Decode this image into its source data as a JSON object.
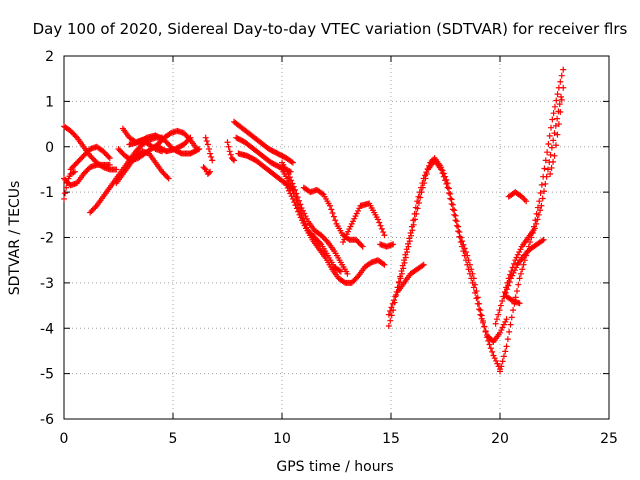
{
  "chart_data": {
    "type": "scatter",
    "title": "Day 100 of 2020, Sidereal Day-to-day VTEC variation (SDTVAR) for receiver flrs",
    "xlabel": "GPS time / hours",
    "ylabel": "SDTVAR / TECUs",
    "xlim": [
      0,
      25
    ],
    "ylim": [
      -6,
      2
    ],
    "x_ticks": [
      0,
      5,
      10,
      15,
      20,
      25
    ],
    "y_ticks": [
      -6,
      -5,
      -4,
      -3,
      -2,
      -1,
      0,
      1,
      2
    ],
    "grid": true,
    "legend": "none",
    "marker": "+",
    "series_color": "#ff0000",
    "series": [
      {
        "name": "s1",
        "x": [
          0.0,
          0.3,
          0.6,
          0.9,
          1.2,
          1.5,
          1.8,
          2.1,
          2.4
        ],
        "y": [
          0.45,
          0.35,
          0.2,
          0.0,
          -0.2,
          -0.35,
          -0.45,
          -0.5,
          -0.5
        ]
      },
      {
        "name": "s2",
        "x": [
          0.0,
          0.3,
          0.6,
          0.9,
          1.2,
          1.5,
          1.8,
          2.1
        ],
        "y": [
          -0.7,
          -0.85,
          -0.8,
          -0.6,
          -0.45,
          -0.4,
          -0.4,
          -0.4
        ]
      },
      {
        "name": "s3",
        "x": [
          0.0,
          0.1,
          0.2,
          0.3,
          0.5
        ],
        "y": [
          -1.15,
          -0.9,
          -0.7,
          -0.6,
          -0.55
        ]
      },
      {
        "name": "s4",
        "x": [
          0.3,
          0.6,
          0.9,
          1.2,
          1.5,
          1.8,
          2.1
        ],
        "y": [
          -0.5,
          -0.35,
          -0.2,
          -0.05,
          0.0,
          -0.1,
          -0.25
        ]
      },
      {
        "name": "s5",
        "x": [
          1.2,
          1.5,
          1.8,
          2.1,
          2.4,
          2.7,
          3.0,
          3.3,
          3.6,
          3.9,
          4.2,
          4.5
        ],
        "y": [
          -1.45,
          -1.3,
          -1.1,
          -0.9,
          -0.7,
          -0.5,
          -0.3,
          -0.1,
          0.05,
          0.15,
          0.2,
          0.2
        ]
      },
      {
        "name": "s6",
        "x": [
          2.4,
          2.7,
          3.0,
          3.3,
          3.6,
          3.9,
          4.2,
          4.5,
          4.8
        ],
        "y": [
          -0.8,
          -0.6,
          -0.4,
          -0.2,
          -0.1,
          -0.15,
          -0.35,
          -0.55,
          -0.7
        ]
      },
      {
        "name": "s7",
        "x": [
          2.7,
          3.0,
          3.3,
          3.6,
          3.9,
          4.2,
          4.5
        ],
        "y": [
          0.4,
          0.2,
          0.1,
          0.15,
          0.05,
          -0.05,
          -0.1
        ]
      },
      {
        "name": "s8",
        "x": [
          2.5,
          2.8,
          3.1,
          3.4,
          3.7,
          4.0,
          4.3,
          4.6,
          4.9,
          5.2,
          5.5,
          5.8,
          6.1
        ],
        "y": [
          -0.05,
          -0.2,
          -0.3,
          -0.25,
          -0.15,
          -0.05,
          0.05,
          0.2,
          0.3,
          0.35,
          0.3,
          0.15,
          -0.05
        ]
      },
      {
        "name": "s9",
        "x": [
          3.0,
          3.4,
          3.8,
          4.2,
          4.6,
          5.0,
          5.4,
          5.8,
          6.2
        ],
        "y": [
          0.05,
          0.1,
          0.2,
          0.25,
          0.15,
          -0.05,
          -0.15,
          -0.15,
          -0.05
        ]
      },
      {
        "name": "s10",
        "x": [
          4.3,
          4.7,
          5.1,
          5.5,
          5.8
        ],
        "y": [
          0.0,
          -0.1,
          -0.05,
          0.05,
          0.2
        ]
      },
      {
        "name": "s11",
        "x": [
          6.5,
          6.6,
          6.7,
          6.8
        ],
        "y": [
          0.2,
          0.05,
          -0.15,
          -0.3
        ]
      },
      {
        "name": "s12",
        "x": [
          6.4,
          6.5,
          6.6,
          6.7
        ],
        "y": [
          -0.45,
          -0.5,
          -0.6,
          -0.55
        ]
      },
      {
        "name": "s13",
        "x": [
          7.5,
          7.6,
          7.7,
          7.8
        ],
        "y": [
          0.1,
          -0.1,
          -0.25,
          -0.3
        ]
      },
      {
        "name": "s14",
        "x": [
          7.8,
          8.2,
          8.6,
          9.0,
          9.4,
          9.8,
          10.2,
          10.5
        ],
        "y": [
          0.55,
          0.4,
          0.25,
          0.1,
          -0.05,
          -0.15,
          -0.25,
          -0.35
        ]
      },
      {
        "name": "s15",
        "x": [
          7.9,
          8.3,
          8.7,
          9.1,
          9.5,
          9.9,
          10.2,
          10.4
        ],
        "y": [
          0.2,
          0.1,
          -0.05,
          -0.2,
          -0.35,
          -0.45,
          -0.5,
          -0.55
        ]
      },
      {
        "name": "s16",
        "x": [
          8.0,
          8.4,
          8.8,
          9.2,
          9.6,
          10.0,
          10.3,
          10.5
        ],
        "y": [
          -0.15,
          -0.2,
          -0.3,
          -0.45,
          -0.6,
          -0.75,
          -0.85,
          -0.95
        ]
      },
      {
        "name": "s17",
        "x": [
          10.0,
          10.3,
          10.6,
          10.9,
          11.2,
          11.5,
          11.8,
          12.1,
          12.4,
          12.7,
          13.0
        ],
        "y": [
          -0.35,
          -0.6,
          -0.95,
          -1.35,
          -1.65,
          -1.85,
          -1.95,
          -2.1,
          -2.3,
          -2.55,
          -2.8
        ]
      },
      {
        "name": "s18",
        "x": [
          10.0,
          10.3,
          10.6,
          10.9,
          11.2,
          11.5,
          11.8,
          12.1,
          12.4,
          12.7
        ],
        "y": [
          -0.5,
          -0.75,
          -1.1,
          -1.5,
          -1.85,
          -2.0,
          -2.15,
          -2.4,
          -2.65,
          -2.75
        ]
      },
      {
        "name": "s19",
        "x": [
          10.2,
          10.5,
          10.8,
          11.1,
          11.4,
          11.7,
          12.0,
          12.3,
          12.6,
          12.9,
          13.2,
          13.5,
          13.8,
          14.1,
          14.4,
          14.7
        ],
        "y": [
          -0.85,
          -1.15,
          -1.5,
          -1.8,
          -2.05,
          -2.25,
          -2.45,
          -2.7,
          -2.9,
          -3.0,
          -3.0,
          -2.85,
          -2.65,
          -2.55,
          -2.5,
          -2.6
        ]
      },
      {
        "name": "s20",
        "x": [
          11.0,
          11.3,
          11.6,
          11.9,
          12.2,
          12.5,
          12.8,
          13.1,
          13.4,
          13.7
        ],
        "y": [
          -0.9,
          -1.0,
          -0.95,
          -1.05,
          -1.3,
          -1.7,
          -1.95,
          -2.05,
          -2.05,
          -2.2
        ]
      },
      {
        "name": "s21",
        "x": [
          12.8,
          13.2,
          13.6,
          14.0,
          14.4,
          14.7
        ],
        "y": [
          -2.1,
          -1.7,
          -1.3,
          -1.25,
          -1.6,
          -1.95
        ]
      },
      {
        "name": "s22",
        "x": [
          14.5,
          14.8,
          15.1
        ],
        "y": [
          -2.15,
          -2.2,
          -2.15
        ]
      },
      {
        "name": "s23",
        "x": [
          14.9,
          15.1,
          15.3,
          15.6,
          15.9,
          16.2,
          16.5,
          16.8,
          17.0,
          17.3,
          17.6,
          17.9,
          18.2,
          18.5,
          18.8,
          19.1,
          19.4,
          19.7,
          20.0
        ],
        "y": [
          -3.95,
          -3.6,
          -3.1,
          -2.5,
          -1.9,
          -1.2,
          -0.7,
          -0.35,
          -0.25,
          -0.45,
          -0.8,
          -1.4,
          -2.0,
          -2.4,
          -2.9,
          -3.6,
          -4.2,
          -4.6,
          -4.9
        ]
      },
      {
        "name": "s24",
        "x": [
          14.9,
          15.2,
          15.5,
          15.8,
          16.1,
          16.4,
          16.7,
          17.0,
          17.3,
          17.6,
          17.9,
          18.2,
          18.5,
          18.8,
          19.1,
          19.4,
          19.7,
          20.0,
          20.3
        ],
        "y": [
          -3.7,
          -3.3,
          -2.8,
          -2.2,
          -1.6,
          -1.0,
          -0.5,
          -0.3,
          -0.5,
          -0.9,
          -1.5,
          -2.1,
          -2.6,
          -3.1,
          -3.7,
          -4.15,
          -4.3,
          -4.1,
          -3.8
        ]
      },
      {
        "name": "s25",
        "x": [
          15.3,
          15.6,
          15.9,
          16.2,
          16.5
        ],
        "y": [
          -3.2,
          -3.0,
          -2.8,
          -2.7,
          -2.6
        ]
      },
      {
        "name": "s26",
        "x": [
          20.0,
          20.3,
          20.6,
          20.9,
          21.2,
          21.5,
          21.8,
          22.1,
          22.4,
          22.7,
          22.9
        ],
        "y": [
          -4.95,
          -4.4,
          -3.6,
          -2.9,
          -2.4,
          -1.9,
          -1.2,
          -0.3,
          0.6,
          1.3,
          1.7
        ]
      },
      {
        "name": "s27",
        "x": [
          19.8,
          20.1,
          20.4,
          20.7,
          21.0,
          21.3,
          21.6,
          21.9,
          22.2,
          22.5,
          22.8
        ],
        "y": [
          -3.9,
          -3.4,
          -2.9,
          -2.5,
          -2.2,
          -2.0,
          -1.8,
          -1.3,
          -0.5,
          0.3,
          1.1
        ]
      },
      {
        "name": "s28",
        "x": [
          20.2,
          20.5,
          20.8,
          21.1,
          21.4,
          21.7,
          22.0
        ],
        "y": [
          -3.3,
          -2.9,
          -2.6,
          -2.4,
          -2.25,
          -2.15,
          -2.05
        ]
      },
      {
        "name": "s29",
        "x": [
          20.3,
          20.6,
          20.9
        ],
        "y": [
          -3.3,
          -3.4,
          -3.45
        ]
      },
      {
        "name": "s30",
        "x": [
          20.4,
          20.7,
          21.0,
          21.2
        ],
        "y": [
          -1.1,
          -1.0,
          -1.1,
          -1.2
        ]
      },
      {
        "name": "s31",
        "x": [
          22.3,
          22.5,
          22.7,
          22.9
        ],
        "y": [
          -0.6,
          -0.2,
          0.5,
          1.3
        ]
      }
    ]
  }
}
